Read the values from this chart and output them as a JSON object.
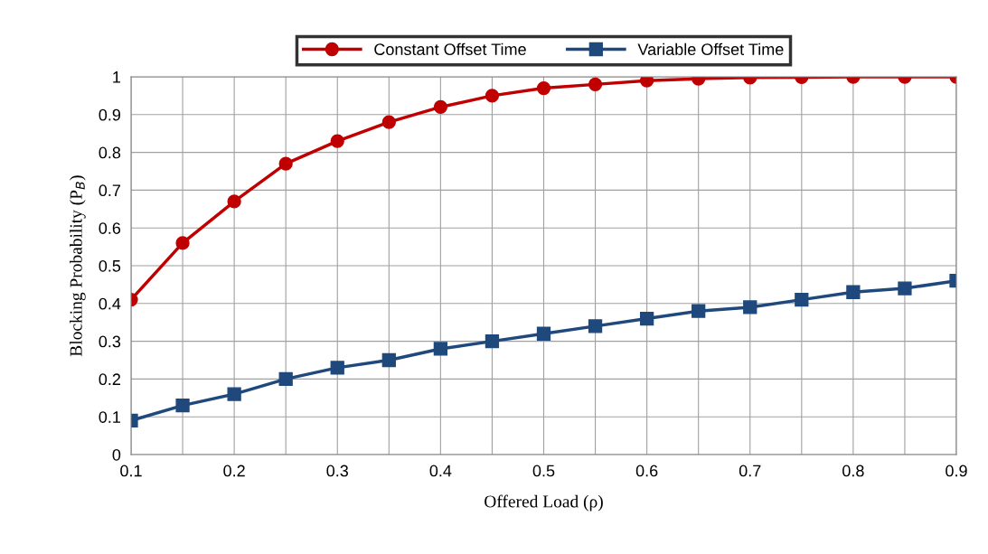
{
  "chart_data": {
    "type": "line",
    "xlabel": "Offered Load (ρ)",
    "ylabel": "Blocking Probability (P$_{B}$)",
    "x": [
      0.1,
      0.15,
      0.2,
      0.25,
      0.3,
      0.35,
      0.4,
      0.45,
      0.5,
      0.55,
      0.6,
      0.65,
      0.7,
      0.75,
      0.8,
      0.85,
      0.9
    ],
    "series": [
      {
        "name": "Constant Offset Time",
        "color": "#c00000",
        "marker": "circle",
        "values": [
          0.41,
          0.56,
          0.67,
          0.77,
          0.83,
          0.88,
          0.92,
          0.95,
          0.97,
          0.98,
          0.99,
          0.995,
          0.998,
          0.999,
          1.0,
          1.0,
          1.0
        ]
      },
      {
        "name": "Variable Offset Time",
        "color": "#1f497d",
        "marker": "square",
        "values": [
          0.09,
          0.13,
          0.16,
          0.2,
          0.23,
          0.25,
          0.28,
          0.3,
          0.32,
          0.34,
          0.36,
          0.38,
          0.39,
          0.41,
          0.43,
          0.44,
          0.46
        ]
      }
    ],
    "xlim": [
      0.1,
      0.9
    ],
    "xticks": [
      0.1,
      0.2,
      0.3,
      0.4,
      0.5,
      0.6,
      0.7,
      0.8,
      0.9
    ],
    "ylim": [
      0,
      1
    ],
    "yticks": [
      0,
      0.1,
      0.2,
      0.3,
      0.4,
      0.5,
      0.6,
      0.7,
      0.8,
      0.9,
      1
    ],
    "grid": true,
    "legend": "top",
    "line_style": "solid"
  }
}
